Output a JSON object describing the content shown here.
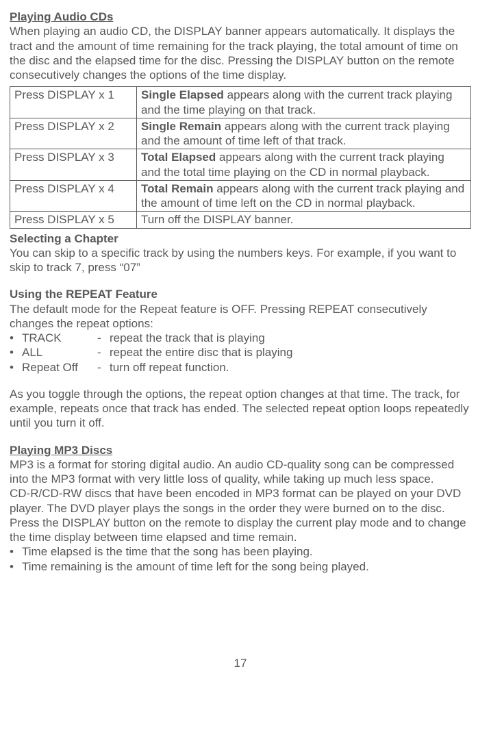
{
  "section1": {
    "title": "Playing Audio CDs",
    "intro": "When playing an audio CD, the DISPLAY banner appears automatically. It displays the tract and the amount of time remaining for the track playing, the total amount of time on the disc and the elapsed time for the disc. Pressing the DISPLAY button on the remote consecutively changes the options of the time display."
  },
  "table": {
    "rows": [
      {
        "c1": "Press DISPLAY x 1",
        "c2_bold": "Single Elapsed",
        "c2_rest": " appears along with the current track playing and the time playing on that track."
      },
      {
        "c1": "Press DISPLAY x 2",
        "c2_bold": "Single Remain",
        "c2_rest": " appears along with the current track playing and the amount of time left of that track."
      },
      {
        "c1": "Press DISPLAY x 3",
        "c2_bold": "Total Elapsed",
        "c2_rest": " appears along with the current track playing and the total time playing on the CD in normal playback."
      },
      {
        "c1": "Press DISPLAY x 4",
        "c2_bold": "Total Remain",
        "c2_rest": " appears along with the current track playing and the amount of time left on the CD in normal playback."
      },
      {
        "c1": "Press DISPLAY x 5",
        "c2_bold": "",
        "c2_rest": "Turn off the DISPLAY banner."
      }
    ]
  },
  "section2": {
    "title": "Selecting a Chapter",
    "body": "You can skip to a specific track by using the numbers keys. For example, if you want to skip to track 7, press “07”"
  },
  "section3": {
    "title": "Using the REPEAT Feature",
    "intro": "The default mode for the Repeat feature is OFF. Pressing REPEAT consecutively changes the repeat options:",
    "items": [
      {
        "label": "TRACK",
        "desc": "repeat the track that is playing"
      },
      {
        "label": "ALL",
        "desc": "repeat the entire disc that is playing"
      },
      {
        "label": "Repeat Off",
        "desc": "turn off repeat function."
      }
    ],
    "outro": "As you toggle through the options, the repeat option changes at that time. The track, for example, repeats once that track has ended. The selected repeat option loops repeatedly until you turn it off."
  },
  "section4": {
    "title": "Playing MP3 Discs",
    "p1": "MP3 is a format for storing digital audio. An audio CD-quality song can be compressed into the MP3 format with very little loss of quality, while taking up much less space.",
    "p2": "CD-R/CD-RW discs that have been encoded in MP3 format can be played on your DVD player. The DVD player plays the songs in the order they were burned on to the disc.",
    "p3": "Press the DISPLAY button on the remote to display the current play mode and to change the time display between time elapsed and time remain.",
    "b1": "Time elapsed is the time that the song has been playing.",
    "b2": "Time remaining is the amount of time left for the song being played."
  },
  "page": "17"
}
